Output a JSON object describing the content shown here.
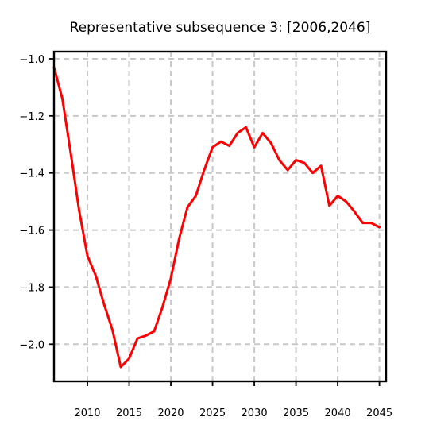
{
  "chart_data": {
    "type": "line",
    "title": "Representative subsequence 3: [2006,2046]",
    "xlabel": "",
    "ylabel": "",
    "xlim": [
      2006,
      2045.8
    ],
    "ylim": [
      -2.13,
      -0.975
    ],
    "xticks": [
      2010,
      2015,
      2020,
      2025,
      2030,
      2035,
      2040,
      2045
    ],
    "yticks": [
      -1.0,
      -1.2,
      -1.4,
      -1.6,
      -1.8,
      -2.0
    ],
    "ytick_labels": [
      "−1.0",
      "−1.2",
      "−1.4",
      "−1.6",
      "−1.8",
      "−2.0"
    ],
    "grid": true,
    "series": [
      {
        "name": "subsequence 3",
        "color": "#ff0000",
        "x": [
          2006,
          2007,
          2008,
          2009,
          2010,
          2011,
          2012,
          2013,
          2014,
          2015,
          2016,
          2017,
          2018,
          2019,
          2020,
          2021,
          2022,
          2023,
          2024,
          2025,
          2026,
          2027,
          2028,
          2029,
          2030,
          2031,
          2032,
          2033,
          2034,
          2035,
          2036,
          2037,
          2038,
          2039,
          2040,
          2041,
          2042,
          2043,
          2044,
          2045
        ],
        "y": [
          -1.03,
          -1.14,
          -1.33,
          -1.53,
          -1.69,
          -1.76,
          -1.86,
          -1.95,
          -2.08,
          -2.05,
          -1.98,
          -1.97,
          -1.955,
          -1.87,
          -1.77,
          -1.63,
          -1.52,
          -1.48,
          -1.39,
          -1.31,
          -1.29,
          -1.305,
          -1.26,
          -1.24,
          -1.31,
          -1.26,
          -1.295,
          -1.355,
          -1.39,
          -1.355,
          -1.365,
          -1.4,
          -1.375,
          -1.515,
          -1.48,
          -1.5,
          -1.535,
          -1.575,
          -1.575,
          -1.59
        ]
      }
    ]
  }
}
